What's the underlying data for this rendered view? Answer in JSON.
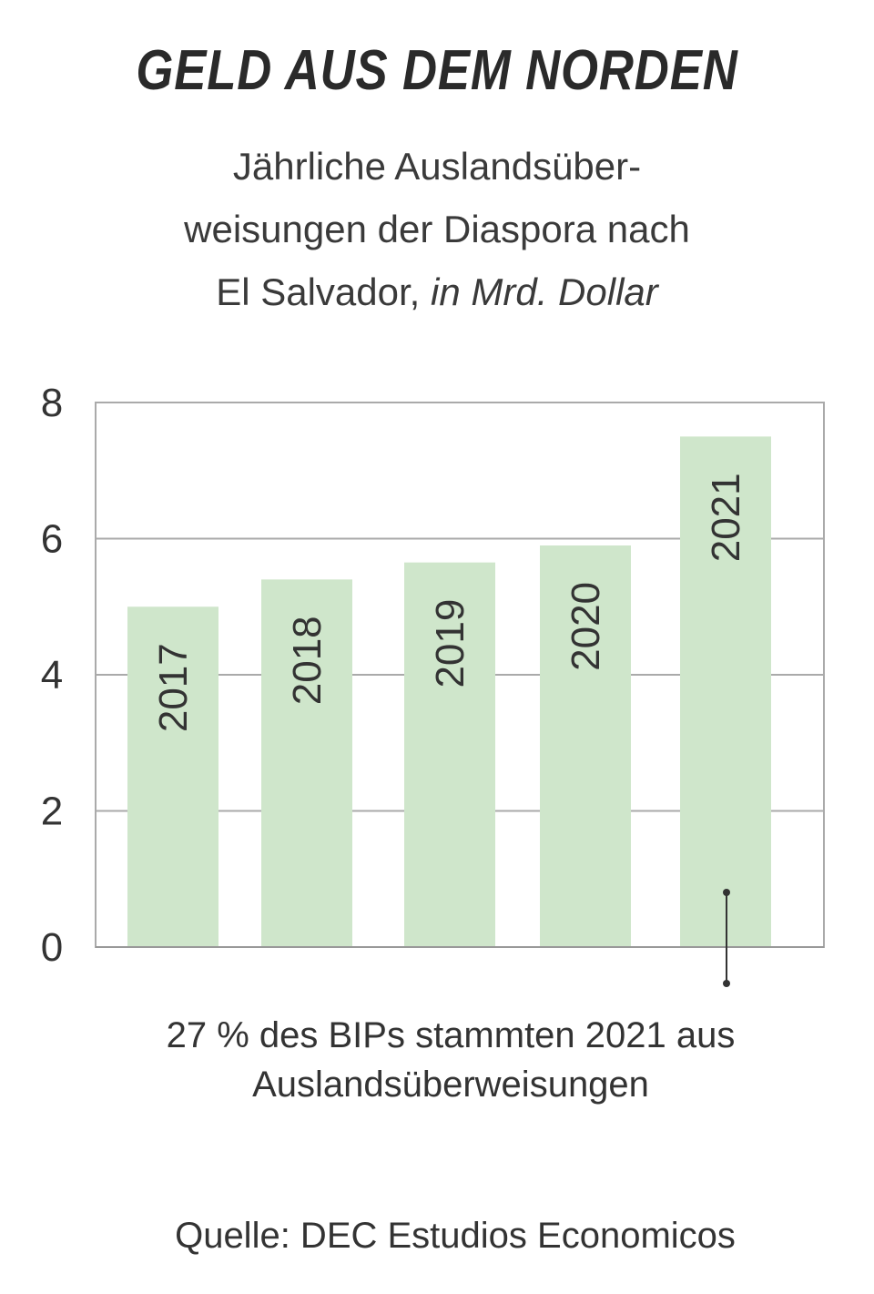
{
  "title": "GELD AUS DEM NORDEN",
  "subtitle": {
    "line1": "Jährliche Auslandsüber-",
    "line2": "weisungen der Diaspora nach",
    "line3_plain": "El Salvador, ",
    "line3_italic": "in Mrd. Dollar"
  },
  "chart_data": {
    "type": "bar",
    "categories": [
      "2017",
      "2018",
      "2019",
      "2020",
      "2021"
    ],
    "values": [
      5.0,
      5.4,
      5.65,
      5.9,
      7.5
    ],
    "ylim": [
      0,
      8
    ],
    "yticks": [
      "0",
      "2",
      "4",
      "6",
      "8"
    ],
    "grid": true,
    "bar_color": "#cfe6cb",
    "annotation": {
      "target": "2021",
      "text_line1": "27 % des BIPs stammten 2021 aus",
      "text_line2": "Auslandsüberweisungen"
    }
  },
  "source": "Quelle: DEC Estudios Economicos"
}
